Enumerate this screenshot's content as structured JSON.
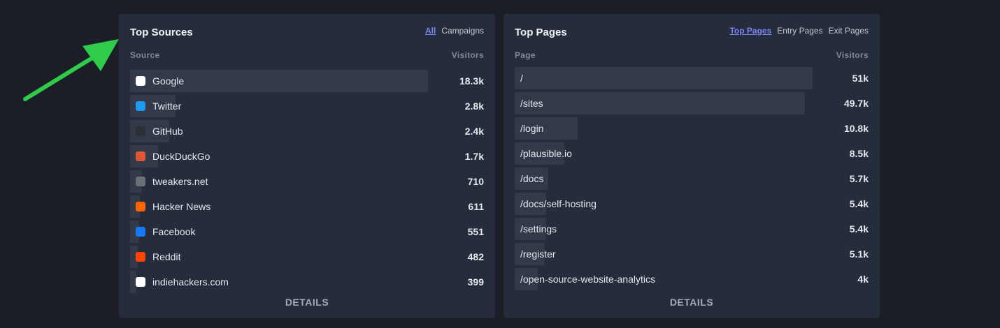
{
  "panels": [
    {
      "title": "Top Sources",
      "tabs": [
        "All",
        "Campaigns"
      ],
      "active_tab": 0,
      "columns": [
        "Source",
        "Visitors"
      ],
      "details": "DETAILS",
      "rows": [
        {
          "label": "Google",
          "visitors": 18300,
          "visitors_label": "18.3k",
          "icon": "#ffffff"
        },
        {
          "label": "Twitter",
          "visitors": 2800,
          "visitors_label": "2.8k",
          "icon": "#1d9bf0"
        },
        {
          "label": "GitHub",
          "visitors": 2400,
          "visitors_label": "2.4k",
          "icon": "#2b2f36"
        },
        {
          "label": "DuckDuckGo",
          "visitors": 1700,
          "visitors_label": "1.7k",
          "icon": "#de5833"
        },
        {
          "label": "tweakers.net",
          "visitors": 710,
          "icon": "#6b6f78"
        },
        {
          "label": "Hacker News",
          "visitors": 611,
          "icon": "#ff6600"
        },
        {
          "label": "Facebook",
          "visitors": 551,
          "icon": "#1877f2"
        },
        {
          "label": "Reddit",
          "visitors": 482,
          "icon": "#ff4500"
        },
        {
          "label": "indiehackers.com",
          "visitors": 399,
          "icon": "#ffffff"
        }
      ]
    },
    {
      "title": "Top Pages",
      "tabs": [
        "Top Pages",
        "Entry Pages",
        "Exit Pages"
      ],
      "active_tab": 0,
      "columns": [
        "Page",
        "Visitors"
      ],
      "details": "DETAILS",
      "rows": [
        {
          "label": "/",
          "visitors": 51000,
          "visitors_label": "51k"
        },
        {
          "label": "/sites",
          "visitors": 49700,
          "visitors_label": "49.7k"
        },
        {
          "label": "/login",
          "visitors": 10800,
          "visitors_label": "10.8k"
        },
        {
          "label": "/plausible.io",
          "visitors": 8500,
          "visitors_label": "8.5k"
        },
        {
          "label": "/docs",
          "visitors": 5700,
          "visitors_label": "5.7k"
        },
        {
          "label": "/docs/self-hosting",
          "visitors": 5400,
          "visitors_label": "5.4k"
        },
        {
          "label": "/settings",
          "visitors": 5400,
          "visitors_label": "5.4k"
        },
        {
          "label": "/register",
          "visitors": 5100,
          "visitors_label": "5.1k"
        },
        {
          "label": "/open-source-website-analytics",
          "visitors": 4000,
          "visitors_label": "4k"
        }
      ]
    }
  ]
}
